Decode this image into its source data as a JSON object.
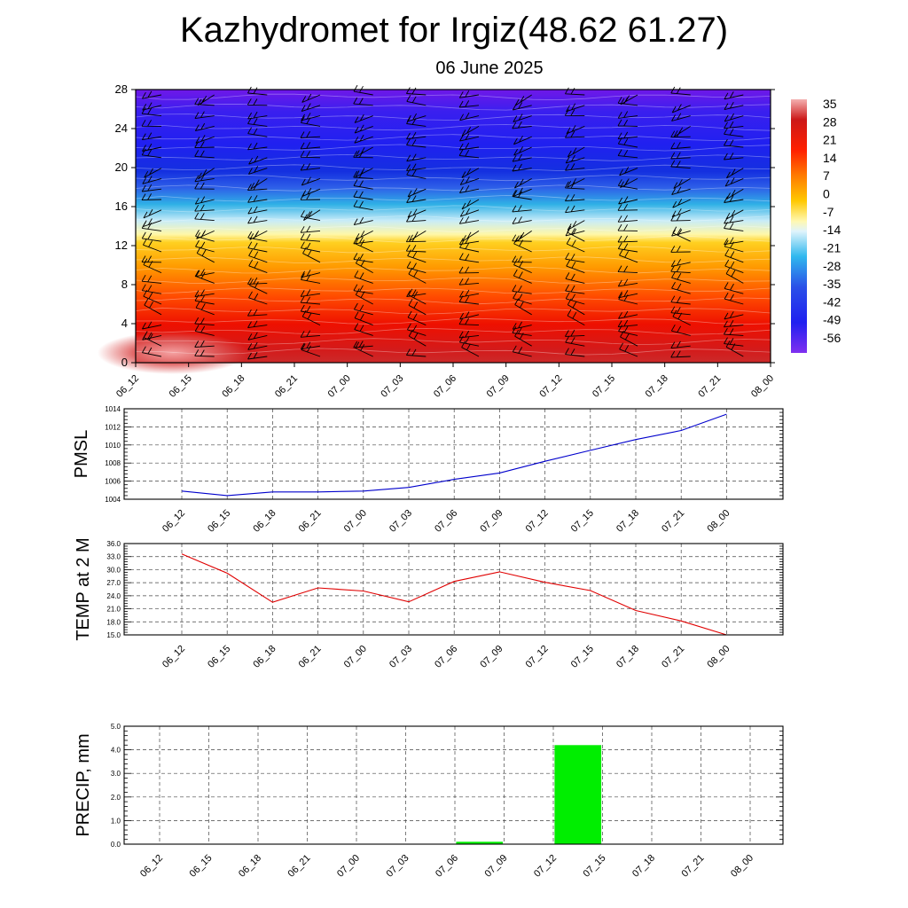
{
  "title": "Kazhydromet for Irgiz(48.62 61.27)",
  "subtitle": "06 June 2025",
  "colors": {
    "pmsl_line": "#0000cc",
    "temp_line": "#e00000",
    "precip_bar": "#00ee00"
  },
  "chart_data": [
    {
      "type": "heatmap",
      "title": "",
      "categories": [
        "06_12",
        "06_15",
        "06_18",
        "06_21",
        "07_00",
        "07_03",
        "07_06",
        "07_09",
        "07_12",
        "07_15",
        "07_18",
        "07_21",
        "08_00"
      ],
      "ylim": [
        0,
        28
      ],
      "yticks": [
        0,
        4,
        8,
        12,
        16,
        20,
        24,
        28
      ],
      "colorbar_labels": [
        "35",
        "28",
        "21",
        "14",
        "7",
        "0",
        "-7",
        "-14",
        "-21",
        "-28",
        "-35",
        "-42",
        "-49",
        "-56"
      ],
      "wind_barbs": true
    },
    {
      "type": "line",
      "ylabel": "PMSL",
      "categories": [
        "06_12",
        "06_15",
        "06_18",
        "06_21",
        "07_00",
        "07_03",
        "07_06",
        "07_09",
        "07_12",
        "07_15",
        "07_18",
        "07_21",
        "08_00"
      ],
      "values": [
        1004.9,
        1004.4,
        1004.8,
        1004.8,
        1004.9,
        1005.3,
        1006.2,
        1006.9,
        1008.2,
        1009.4,
        1010.6,
        1011.6,
        1013.4
      ],
      "ylim": [
        1004,
        1014
      ],
      "yticks": [
        "1004",
        "1006",
        "1008",
        "1010",
        "1012",
        "1014"
      ]
    },
    {
      "type": "line",
      "ylabel": "TEMP at 2 M",
      "categories": [
        "06_12",
        "06_15",
        "06_18",
        "06_21",
        "07_00",
        "07_03",
        "07_06",
        "07_09",
        "07_12",
        "07_15",
        "07_18",
        "07_21",
        "08_00"
      ],
      "values": [
        33.6,
        29.2,
        22.5,
        25.8,
        25.1,
        22.6,
        27.3,
        29.5,
        27.1,
        25.2,
        20.6,
        18.2,
        15.0
      ],
      "ylim": [
        15,
        36
      ],
      "yticks": [
        "15.0",
        "18.0",
        "21.0",
        "24.0",
        "27.0",
        "30.0",
        "33.0",
        "36.0"
      ]
    },
    {
      "type": "bar",
      "ylabel": "PRECIP, mm",
      "categories": [
        "06_12",
        "06_15",
        "06_18",
        "06_21",
        "07_00",
        "07_03",
        "07_06",
        "07_09",
        "07_12",
        "07_15",
        "07_18",
        "07_21",
        "08_00"
      ],
      "values": [
        0,
        0,
        0,
        0,
        0,
        0,
        0.1,
        0,
        4.2,
        0,
        0,
        0,
        0
      ],
      "ylim": [
        0,
        5
      ],
      "yticks": [
        "0.0",
        "1.0",
        "2.0",
        "3.0",
        "4.0",
        "5.0"
      ]
    }
  ]
}
